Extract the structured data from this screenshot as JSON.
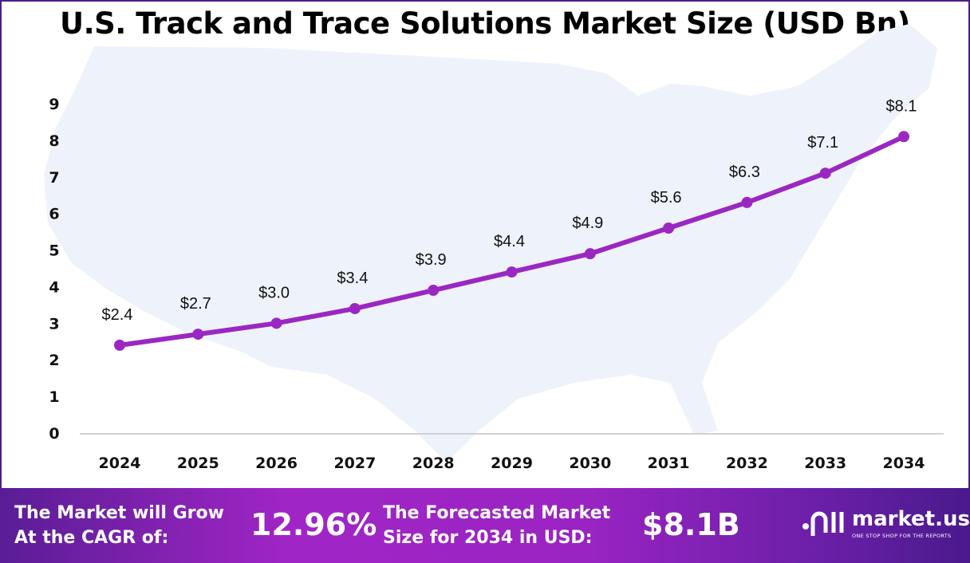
{
  "title": "U.S. Track and Trace Solutions Market Size (USD Bn)",
  "chart_data": {
    "type": "line",
    "title": "U.S. Track and Trace Solutions Market Size (USD Bn)",
    "categories": [
      "2024",
      "2025",
      "2026",
      "2027",
      "2028",
      "2029",
      "2030",
      "2031",
      "2032",
      "2033",
      "2034"
    ],
    "values": [
      2.4,
      2.7,
      3.0,
      3.4,
      3.9,
      4.4,
      4.9,
      5.6,
      6.3,
      7.1,
      8.1
    ],
    "data_labels": [
      "$2.4",
      "$2.7",
      "$3.0",
      "$3.4",
      "$3.9",
      "$4.4",
      "$4.9",
      "$5.6",
      "$6.3",
      "$7.1",
      "$8.1"
    ],
    "yticks": [
      "0",
      "1",
      "2",
      "3",
      "4",
      "5",
      "6",
      "7",
      "8",
      "9"
    ],
    "ylim": [
      0,
      9
    ],
    "grid": false,
    "line_color": "#9b27c2",
    "background": "US map silhouette"
  },
  "footer": {
    "cagr_label_1": "The Market will Grow",
    "cagr_label_2": "At the CAGR of:",
    "cagr_value": "12.96%",
    "forecast_label_1": "The Forecasted Market",
    "forecast_label_2": "Size for 2034 in USD:",
    "forecast_value": "$8.1B",
    "logo_text": "market.us",
    "logo_tagline": "ONE STOP SHOP FOR THE REPORTS"
  }
}
